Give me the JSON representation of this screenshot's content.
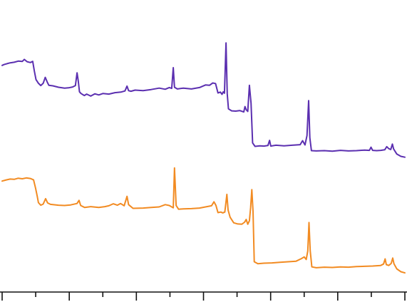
{
  "chart_data": {
    "type": "line",
    "title": "",
    "xlabel": "",
    "ylabel": "",
    "xlim": [
      0,
      100
    ],
    "ylim": [
      0,
      100
    ],
    "x_ticks": [
      0,
      8.33,
      16.67,
      25,
      33.33,
      41.67,
      50,
      58.33,
      66.67,
      75,
      83.33,
      91.67,
      100
    ],
    "x_major_ticks": [
      0,
      16.67,
      33.33,
      50,
      66.67,
      83.33,
      100
    ],
    "tick_labels_visible": false,
    "grid": false,
    "legend": "none",
    "series": [
      {
        "color": "#5b2fb0",
        "points": [
          [
            0,
            79.5
          ],
          [
            0.5,
            79.8
          ],
          [
            1.2,
            80.1
          ],
          [
            2,
            80.4
          ],
          [
            3,
            80.6
          ],
          [
            4,
            81
          ],
          [
            5,
            80.9
          ],
          [
            5.5,
            81.6
          ],
          [
            6.2,
            80.8
          ],
          [
            7,
            80.5
          ],
          [
            7.6,
            80.9
          ],
          [
            8,
            77.5
          ],
          [
            8.4,
            74.5
          ],
          [
            9,
            73.2
          ],
          [
            9.6,
            72.4
          ],
          [
            10.2,
            73.2
          ],
          [
            10.7,
            75.3
          ],
          [
            11.2,
            73.6
          ],
          [
            11.6,
            72.5
          ],
          [
            12.6,
            72.3
          ],
          [
            14,
            71.8
          ],
          [
            15.5,
            71.5
          ],
          [
            16.5,
            71.6
          ],
          [
            17.5,
            71.9
          ],
          [
            18.2,
            72.4
          ],
          [
            18.6,
            76.9
          ],
          [
            18.9,
            74
          ],
          [
            19.2,
            70.2
          ],
          [
            19.6,
            69.6
          ],
          [
            20.4,
            68.9
          ],
          [
            21,
            69.4
          ],
          [
            22,
            68.7
          ],
          [
            23,
            69.5
          ],
          [
            24,
            69.1
          ],
          [
            25,
            69.6
          ],
          [
            26.5,
            69.4
          ],
          [
            28,
            69.9
          ],
          [
            29.5,
            70.1
          ],
          [
            30.5,
            70.5
          ],
          [
            31,
            72.2
          ],
          [
            31.4,
            70.6
          ],
          [
            32,
            70.4
          ],
          [
            33,
            70.8
          ],
          [
            35,
            70.6
          ],
          [
            37,
            71
          ],
          [
            39,
            71.5
          ],
          [
            40.5,
            71.1
          ],
          [
            41.5,
            71.7
          ],
          [
            42.1,
            71.4
          ],
          [
            42.5,
            78.7
          ],
          [
            42.8,
            71.8
          ],
          [
            43.5,
            71.2
          ],
          [
            45,
            71.5
          ],
          [
            47,
            71.2
          ],
          [
            49,
            71.7
          ],
          [
            50.5,
            72.6
          ],
          [
            51.5,
            72.5
          ],
          [
            52.3,
            73.3
          ],
          [
            53,
            73.1
          ],
          [
            53.6,
            69.8
          ],
          [
            54.2,
            70.1
          ],
          [
            54.6,
            69.3
          ],
          [
            54.9,
            70.2
          ],
          [
            55.2,
            69.7
          ],
          [
            55.6,
            87.4
          ],
          [
            55.9,
            69.5
          ],
          [
            56.2,
            64.2
          ],
          [
            57,
            63.5
          ],
          [
            58,
            63.4
          ],
          [
            59,
            63.6
          ],
          [
            60,
            63.1
          ],
          [
            60.3,
            65
          ],
          [
            60.6,
            63.9
          ],
          [
            61,
            63.3
          ],
          [
            61.4,
            72.5
          ],
          [
            61.8,
            66.2
          ],
          [
            62.2,
            52.2
          ],
          [
            62.8,
            51
          ],
          [
            64,
            51.2
          ],
          [
            65,
            51.1
          ],
          [
            66,
            51.3
          ],
          [
            66.4,
            53.1
          ],
          [
            66.7,
            51.1
          ],
          [
            68,
            51.4
          ],
          [
            70,
            51.2
          ],
          [
            72,
            51.4
          ],
          [
            74,
            51.6
          ],
          [
            74.6,
            53
          ],
          [
            75.2,
            51.5
          ],
          [
            75.7,
            54.8
          ],
          [
            76.1,
            67.1
          ],
          [
            76.4,
            54
          ],
          [
            76.8,
            49.5
          ],
          [
            78,
            49.4
          ],
          [
            80,
            49.5
          ],
          [
            82,
            49.3
          ],
          [
            84,
            49.6
          ],
          [
            86,
            49.4
          ],
          [
            88,
            49.5
          ],
          [
            90,
            49.7
          ],
          [
            91.2,
            49.6
          ],
          [
            91.6,
            50.7
          ],
          [
            92,
            49.6
          ],
          [
            93,
            49.5
          ],
          [
            94,
            49.6
          ],
          [
            95,
            49.8
          ],
          [
            95.5,
            50.9
          ],
          [
            96,
            50.2
          ],
          [
            96.5,
            49.9
          ],
          [
            96.9,
            51.8
          ],
          [
            97.2,
            50.1
          ],
          [
            98,
            48.3
          ],
          [
            99,
            47.5
          ],
          [
            100,
            47.2
          ]
        ]
      },
      {
        "color": "#f28b22",
        "points": [
          [
            0,
            38.8
          ],
          [
            1,
            39.2
          ],
          [
            2,
            39.5
          ],
          [
            3,
            39.4
          ],
          [
            4,
            39.8
          ],
          [
            5,
            39.6
          ],
          [
            6,
            39.9
          ],
          [
            7,
            39.7
          ],
          [
            7.8,
            39.2
          ],
          [
            8.3,
            36.3
          ],
          [
            8.7,
            33.5
          ],
          [
            9,
            31.2
          ],
          [
            9.6,
            30.3
          ],
          [
            10.2,
            30.7
          ],
          [
            10.8,
            32.6
          ],
          [
            11.3,
            31.1
          ],
          [
            12,
            30.6
          ],
          [
            14,
            30.3
          ],
          [
            15.5,
            30.2
          ],
          [
            17,
            30.4
          ],
          [
            18.6,
            30.9
          ],
          [
            19.1,
            32
          ],
          [
            19.5,
            30.2
          ],
          [
            20.5,
            29.5
          ],
          [
            22,
            29.8
          ],
          [
            24,
            29.5
          ],
          [
            25.5,
            29.8
          ],
          [
            26.5,
            30.1
          ],
          [
            27.6,
            30.8
          ],
          [
            28.6,
            30.3
          ],
          [
            29.4,
            30.9
          ],
          [
            30.3,
            30.1
          ],
          [
            31,
            33.4
          ],
          [
            31.4,
            30.5
          ],
          [
            32.5,
            29.2
          ],
          [
            35,
            29.3
          ],
          [
            37,
            29.5
          ],
          [
            39,
            29.7
          ],
          [
            40.5,
            30.5
          ],
          [
            41.5,
            30.2
          ],
          [
            42.5,
            29.4
          ],
          [
            42.8,
            43.4
          ],
          [
            43.2,
            30.2
          ],
          [
            43.8,
            28.9
          ],
          [
            45,
            29
          ],
          [
            47,
            29.1
          ],
          [
            49,
            29.3
          ],
          [
            50.5,
            29.7
          ],
          [
            52,
            30.1
          ],
          [
            52.6,
            31.5
          ],
          [
            53.1,
            30.2
          ],
          [
            53.6,
            27.7
          ],
          [
            54.3,
            27.9
          ],
          [
            54.8,
            27.6
          ],
          [
            55.3,
            27.9
          ],
          [
            55.8,
            34.1
          ],
          [
            56.1,
            28.6
          ],
          [
            56.6,
            26.1
          ],
          [
            57.5,
            24.1
          ],
          [
            58.5,
            23.7
          ],
          [
            59.5,
            23.6
          ],
          [
            60.2,
            24.3
          ],
          [
            60.6,
            25.3
          ],
          [
            61,
            23.6
          ],
          [
            61.4,
            24.8
          ],
          [
            61.7,
            29.4
          ],
          [
            62,
            35.8
          ],
          [
            62.3,
            28.1
          ],
          [
            62.6,
            10.4
          ],
          [
            63.5,
            9.7
          ],
          [
            65,
            9.9
          ],
          [
            67,
            10
          ],
          [
            69,
            10.2
          ],
          [
            71,
            10.4
          ],
          [
            73,
            10.6
          ],
          [
            74.3,
            11.5
          ],
          [
            75,
            12.1
          ],
          [
            75.5,
            11.2
          ],
          [
            75.9,
            14.2
          ],
          [
            76.2,
            24.2
          ],
          [
            76.5,
            14.3
          ],
          [
            76.9,
            8.6
          ],
          [
            78,
            8.3
          ],
          [
            80,
            8.5
          ],
          [
            82,
            8.4
          ],
          [
            84,
            8.6
          ],
          [
            86,
            8.5
          ],
          [
            88,
            8.7
          ],
          [
            90,
            8.8
          ],
          [
            92,
            8.9
          ],
          [
            94,
            9.1
          ],
          [
            94.7,
            9.6
          ],
          [
            95.1,
            11.4
          ],
          [
            95.4,
            9.4
          ],
          [
            96,
            9.1
          ],
          [
            96.6,
            9.8
          ],
          [
            97,
            11.7
          ],
          [
            97.3,
            9.7
          ],
          [
            98,
            7.9
          ],
          [
            99,
            6.9
          ],
          [
            100,
            6.5
          ]
        ]
      }
    ]
  }
}
